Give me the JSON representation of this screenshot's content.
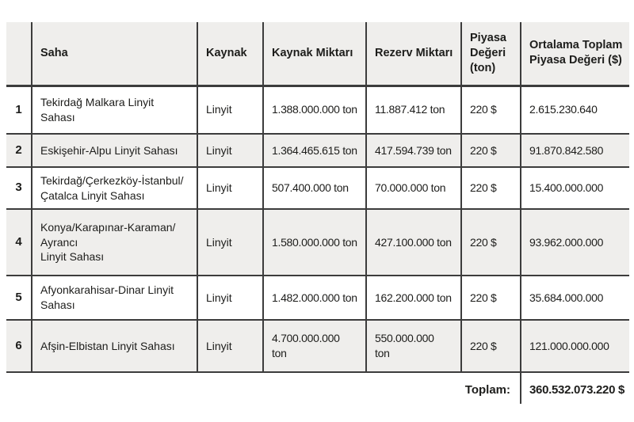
{
  "table": {
    "title_semantic": "Linyit sahaları piyasa değeri tablosu",
    "headers": {
      "index": "",
      "saha": "Saha",
      "kaynak": "Kaynak",
      "kaynak_miktari": "Kaynak Miktarı",
      "rezerv_miktari": "Rezerv Miktarı",
      "piyasa_degeri": "Piyasa\nDeğeri\n(ton)",
      "ortalama_toplam": "Ortalama Toplam\nPiyasa Değeri ($)"
    },
    "rows": [
      {
        "no": "1",
        "saha": "Tekirdağ Malkara Linyit\nSahası",
        "kaynak": "Linyit",
        "kaynak_miktari": "1.388.000.000 ton",
        "rezerv_miktari": "11.887.412 ton",
        "piyasa_degeri": "220 $",
        "ortalama_toplam": "2.615.230.640"
      },
      {
        "no": "2",
        "saha": "Eskişehir-Alpu Linyit Sahası",
        "kaynak": "Linyit",
        "kaynak_miktari": "1.364.465.615 ton",
        "rezerv_miktari": "417.594.739 ton",
        "piyasa_degeri": "220 $",
        "ortalama_toplam": "91.870.842.580"
      },
      {
        "no": "3",
        "saha": "Tekirdağ/Çerkezköy-İstanbul/\nÇatalca Linyit Sahası",
        "kaynak": "Linyit",
        "kaynak_miktari": "507.400.000 ton",
        "rezerv_miktari": "70.000.000 ton",
        "piyasa_degeri": "220 $",
        "ortalama_toplam": "15.400.000.000"
      },
      {
        "no": "4",
        "saha": "Konya/Karapınar-Karaman/\nAyrancı\nLinyit Sahası",
        "kaynak": "Linyit",
        "kaynak_miktari": "1.580.000.000 ton",
        "rezerv_miktari": "427.100.000 ton",
        "piyasa_degeri": "220 $",
        "ortalama_toplam": "93.962.000.000"
      },
      {
        "no": "5",
        "saha": "Afyonkarahisar-Dinar Linyit\nSahası",
        "kaynak": "Linyit",
        "kaynak_miktari": "1.482.000.000 ton",
        "rezerv_miktari": "162.200.000 ton",
        "piyasa_degeri": "220 $",
        "ortalama_toplam": "35.684.000.000"
      },
      {
        "no": "6",
        "saha": "Afşin-Elbistan Linyit Sahası",
        "kaynak": "Linyit",
        "kaynak_miktari": "4.700.000.000\nton",
        "rezerv_miktari": "550.000.000\nton",
        "piyasa_degeri": "220 $",
        "ortalama_toplam": "121.000.000.000"
      }
    ],
    "footer": {
      "label": "Toplam:",
      "value": "360.532.073.220 $"
    }
  },
  "colors": {
    "header_bg": "#efeeec",
    "row_alt_bg": "#efeeec",
    "border": "#3c3c3c",
    "text": "#1d1d1b",
    "page_bg": "#ffffff"
  }
}
